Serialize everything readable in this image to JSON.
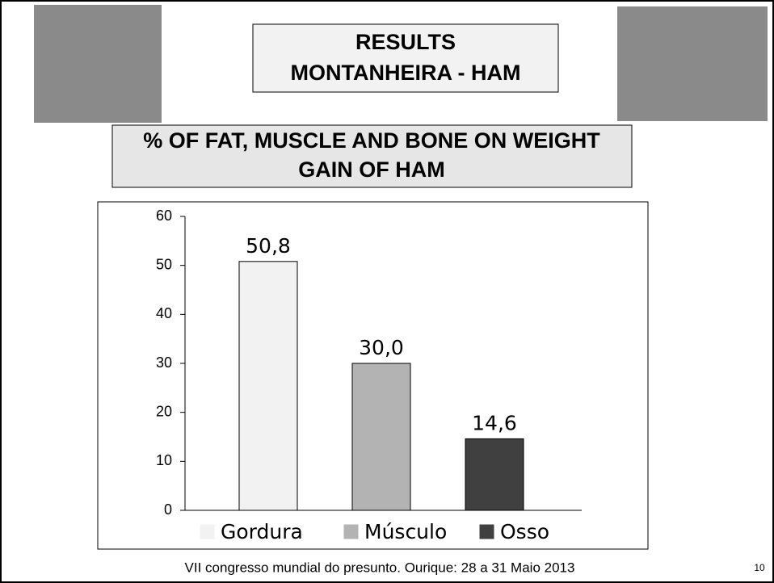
{
  "slide": {
    "title_lines": [
      "RESULTS",
      "MONTANHEIRA - HAM"
    ],
    "subtitle_lines": [
      "% OF FAT, MUSCLE AND BONE ON WEIGHT",
      "GAIN OF HAM"
    ],
    "footer": "VII congresso mundial do presunto. Ourique: 28 a 31 Maio 2013",
    "page_number": 10
  },
  "chart_data": {
    "type": "bar",
    "categories": [
      "Gordura",
      "Músculo",
      "Osso"
    ],
    "values": [
      50.8,
      30.0,
      14.6
    ],
    "value_labels": [
      "50,8",
      "30,0",
      "14,6"
    ],
    "colors": [
      "#f2f2f2",
      "#b3b3b3",
      "#404040"
    ],
    "ylim": [
      0,
      60
    ],
    "yticks": [
      0,
      10,
      20,
      30,
      40,
      50,
      60
    ],
    "legend": "bottom"
  }
}
